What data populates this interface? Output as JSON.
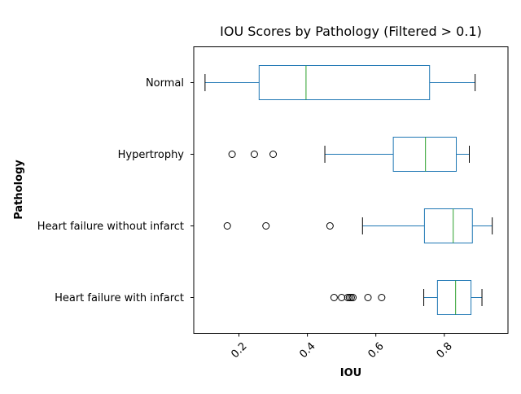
{
  "chart_data": {
    "type": "boxplot",
    "orientation": "horizontal",
    "title": "IOU Scores by Pathology (Filtered > 0.1)",
    "xlabel": "IOU",
    "ylabel": "Pathology",
    "xlim": [
      0.068,
      0.986
    ],
    "xticks": [
      0.2,
      0.4,
      0.6,
      0.8
    ],
    "xtick_labels": [
      "0.2",
      "0.4",
      "0.6",
      "0.8"
    ],
    "xtick_rotation": 45,
    "grid": false,
    "legend": "none",
    "colors": {
      "box": "#1f77b4",
      "median": "#2ca02c",
      "whisker": "#1f77b4",
      "cap": "#000000",
      "flier": "#000000"
    },
    "categories": [
      "Heart failure with infarct",
      "Heart failure without infarct",
      "Hypertrophy",
      "Normal"
    ],
    "boxes": [
      {
        "label": "Heart failure with infarct",
        "whislo": 0.74,
        "q1": 0.78,
        "med": 0.833,
        "q3": 0.878,
        "whishi": 0.91,
        "fliers": [
          0.478,
          0.5,
          0.518,
          0.523,
          0.528,
          0.533,
          0.577,
          0.617
        ]
      },
      {
        "label": "Heart failure without infarct",
        "whislo": 0.561,
        "q1": 0.742,
        "med": 0.826,
        "q3": 0.882,
        "whishi": 0.94,
        "fliers": [
          0.166,
          0.279,
          0.466
        ]
      },
      {
        "label": "Hypertrophy",
        "whislo": 0.451,
        "q1": 0.651,
        "med": 0.745,
        "q3": 0.835,
        "whishi": 0.873,
        "fliers": [
          0.18,
          0.245,
          0.3
        ]
      },
      {
        "label": "Normal",
        "whislo": 0.101,
        "q1": 0.259,
        "med": 0.396,
        "q3": 0.757,
        "whishi": 0.89,
        "fliers": []
      }
    ]
  }
}
